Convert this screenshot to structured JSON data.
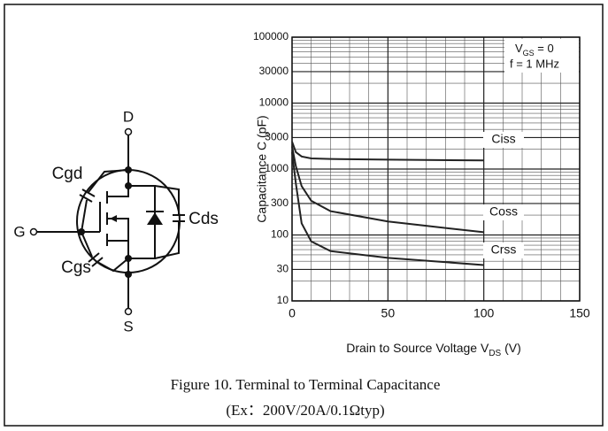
{
  "schematic": {
    "drain": "D",
    "gate": "G",
    "source": "S",
    "cgd": "Cgd",
    "cgs": "Cgs",
    "cds": "Cds"
  },
  "caption": [
    "Figure 10. Terminal to Terminal Capacitance",
    "(Ex：200V/20A/0.1Ωtyp)"
  ],
  "chart_data": {
    "type": "line",
    "y_label": "Capacitance  C  (pF)",
    "x_label": {
      "main": "Drain to Source Voltage  V",
      "sub": "DS",
      "rest": "  (V)"
    },
    "annotations": [
      {
        "main": "V",
        "sub": "GS",
        "rest": " = 0"
      },
      "f = 1 MHz"
    ],
    "x": [
      0,
      2,
      5,
      10,
      20,
      50,
      100
    ],
    "series": [
      {
        "name": "Ciss",
        "color": "#222222",
        "values": [
          2600,
          1800,
          1550,
          1450,
          1420,
          1390,
          1350
        ]
      },
      {
        "name": "Coss",
        "color": "#222222",
        "values": [
          2200,
          1100,
          550,
          330,
          230,
          160,
          110
        ]
      },
      {
        "name": "Crss",
        "color": "#222222",
        "values": [
          1800,
          600,
          150,
          80,
          57,
          45,
          35
        ]
      }
    ],
    "xlim": [
      0,
      150
    ],
    "xticks": [
      0,
      50,
      100,
      150
    ],
    "ylim": [
      10,
      100000
    ],
    "yticks": [
      10,
      30,
      100,
      300,
      1000,
      3000,
      10000,
      30000,
      100000
    ],
    "log_y": true,
    "grid": true
  }
}
